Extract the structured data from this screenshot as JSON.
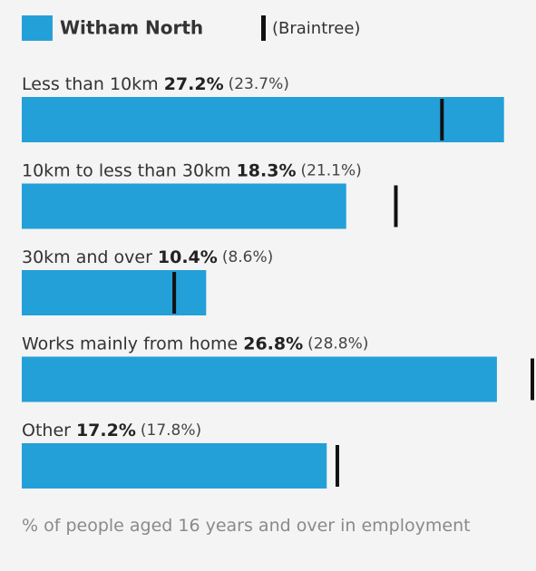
{
  "chart_data": {
    "type": "bar",
    "orientation": "horizontal",
    "categories": [
      "Less than 10km",
      "10km to less than 30km",
      "30km and over",
      "Works mainly from home",
      "Other"
    ],
    "series": [
      {
        "name": "Witham North",
        "color": "#24a0d8",
        "values": [
          27.2,
          18.3,
          10.4,
          26.8,
          17.2
        ],
        "value_labels": [
          "27.2%",
          "18.3%",
          "10.4%",
          "26.8%",
          "17.2%"
        ]
      },
      {
        "name": "(Braintree)",
        "color": "#111111",
        "values": [
          23.7,
          21.1,
          8.6,
          28.8,
          17.8
        ],
        "value_labels": [
          "(23.7%)",
          "(21.1%)",
          "(8.6%)",
          "(28.8%)",
          "(17.8%)"
        ]
      }
    ],
    "xlim": [
      0,
      28.8
    ],
    "note": "% of people aged 16 years and over in employment"
  }
}
